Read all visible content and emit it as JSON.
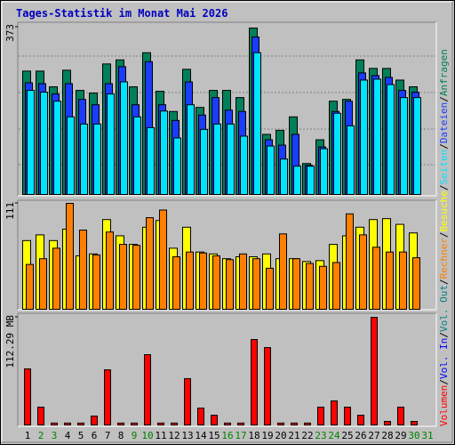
{
  "chart_data": [
    {
      "type": "bar",
      "title": "Tages-Statistik im Monat Mai 2026",
      "categories": [
        "1",
        "2",
        "3",
        "4",
        "5",
        "6",
        "7",
        "8",
        "9",
        "10",
        "11",
        "12",
        "13",
        "14",
        "15",
        "16",
        "17",
        "18",
        "19",
        "20",
        "21",
        "22",
        "23",
        "24",
        "25",
        "26",
        "27",
        "28",
        "29",
        "30",
        "31"
      ],
      "series": [
        {
          "name": "Anfragen",
          "color": "#00805a",
          "values": [
            275,
            275,
            240,
            277,
            232,
            226,
            291,
            300,
            240,
            316,
            230,
            185,
            279,
            194,
            232,
            232,
            216,
            371,
            134,
            143,
            173,
            69,
            122,
            208,
            212,
            300,
            281,
            281,
            255,
            240,
            0
          ]
        },
        {
          "name": "Dateien",
          "color": "#1a3cff",
          "values": [
            249,
            247,
            224,
            247,
            212,
            200,
            247,
            285,
            200,
            296,
            200,
            165,
            251,
            177,
            216,
            188,
            185,
            351,
            122,
            110,
            134,
            65,
            106,
            185,
            208,
            271,
            265,
            261,
            232,
            228,
            0
          ]
        },
        {
          "name": "Seiten",
          "color": "#00e4ff",
          "values": [
            232,
            228,
            208,
            173,
            157,
            157,
            224,
            251,
            173,
            149,
            186,
            126,
            200,
            145,
            157,
            157,
            130,
            316,
            108,
            79,
            63,
            63,
            102,
            181,
            153,
            255,
            257,
            245,
            216,
            216,
            0
          ]
        }
      ],
      "ylim": [
        0,
        373
      ],
      "yticks": [
        373
      ]
    },
    {
      "type": "bar",
      "categories": [
        "1",
        "2",
        "3",
        "4",
        "5",
        "6",
        "7",
        "8",
        "9",
        "10",
        "11",
        "12",
        "13",
        "14",
        "15",
        "16",
        "17",
        "18",
        "19",
        "20",
        "21",
        "22",
        "23",
        "24",
        "25",
        "26",
        "27",
        "28",
        "29",
        "30",
        "31"
      ],
      "series": [
        {
          "name": "Besuche",
          "color": "#ffff00",
          "values": [
            72,
            78,
            72,
            84,
            56,
            58,
            94,
            77,
            68,
            86,
            93,
            64,
            86,
            60,
            58,
            53,
            55,
            55,
            58,
            53,
            53,
            50,
            51,
            68,
            77,
            86,
            94,
            95,
            89,
            80,
            0
          ]
        },
        {
          "name": "Rechner",
          "color": "#ff8000",
          "values": [
            47,
            53,
            64,
            111,
            83,
            57,
            81,
            68,
            67,
            96,
            104,
            55,
            60,
            59,
            56,
            52,
            58,
            53,
            43,
            79,
            53,
            48,
            45,
            49,
            100,
            78,
            65,
            60,
            60,
            54,
            0
          ]
        }
      ],
      "ylim": [
        0,
        111
      ],
      "yticks": [
        111
      ]
    },
    {
      "type": "bar",
      "categories": [
        "1",
        "2",
        "3",
        "4",
        "5",
        "6",
        "7",
        "8",
        "9",
        "10",
        "11",
        "12",
        "13",
        "14",
        "15",
        "16",
        "17",
        "18",
        "19",
        "20",
        "21",
        "22",
        "23",
        "24",
        "25",
        "26",
        "27",
        "28",
        "29",
        "30",
        "31"
      ],
      "series": [
        {
          "name": "Volumen",
          "color": "#ff0000",
          "values": [
            58.5,
            18.6,
            2,
            2,
            2,
            9.3,
            57.5,
            2,
            2,
            73.3,
            2,
            2,
            48.3,
            17.6,
            10.2,
            2,
            2,
            89.1,
            80.7,
            2,
            2,
            2,
            18.6,
            25.1,
            18.6,
            10.2,
            112.29,
            3.7,
            18.6,
            3.7,
            0
          ]
        }
      ],
      "ylim": [
        0,
        112.29
      ],
      "yticks": [
        {
          "value": 112.29,
          "label": "112.29 MB"
        }
      ],
      "legend_extra": [
        {
          "name": "Vol. In",
          "color": "#0000ff"
        },
        {
          "name": "Vol. Out",
          "color": "#008080"
        }
      ],
      "weekends": [
        "2",
        "3",
        "9",
        "10",
        "16",
        "17",
        "23",
        "24",
        "30",
        "31"
      ],
      "weekend_color": "#008000"
    }
  ],
  "legend_separator": "/"
}
